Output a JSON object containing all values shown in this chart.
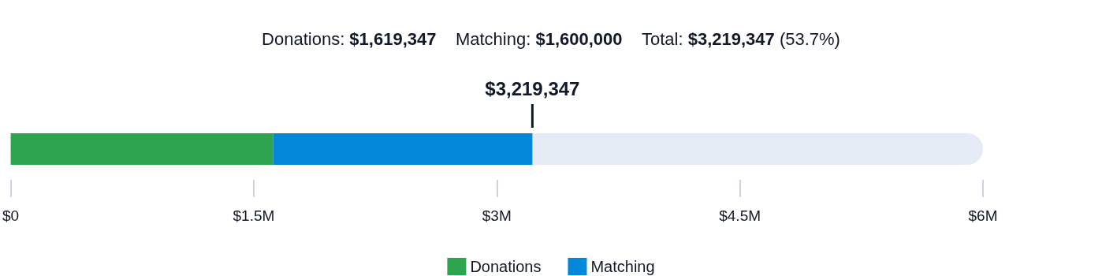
{
  "chart_data": {
    "type": "bar",
    "orientation": "horizontal",
    "stacked": true,
    "categories": [
      null
    ],
    "series": [
      {
        "name": "Donations",
        "color": "#2ea44f",
        "values": [
          1619347
        ]
      },
      {
        "name": "Matching",
        "color": "#0288d9",
        "values": [
          1600000
        ]
      }
    ],
    "xlim": [
      0,
      6000000
    ],
    "xticks": [
      {
        "value": 0,
        "label": "$0"
      },
      {
        "value": 1500000,
        "label": "$1.5M"
      },
      {
        "value": 3000000,
        "label": "$3M"
      },
      {
        "value": 4500000,
        "label": "$4.5M"
      },
      {
        "value": 6000000,
        "label": "$6M"
      }
    ],
    "bands": [
      {
        "axis": "x",
        "from": 0,
        "to": 6000000,
        "color": "#e4ebf5"
      }
    ],
    "ref_lines": [
      {
        "axis": "x",
        "value": 3219347,
        "label": "$3,219,347",
        "color": "#111827"
      }
    ],
    "annotations": [
      "Donations: $1,619,347",
      "Matching: $1,600,000",
      "Total: $3,219,347 (53.7%)"
    ],
    "legend": "bottom",
    "grid": false
  }
}
